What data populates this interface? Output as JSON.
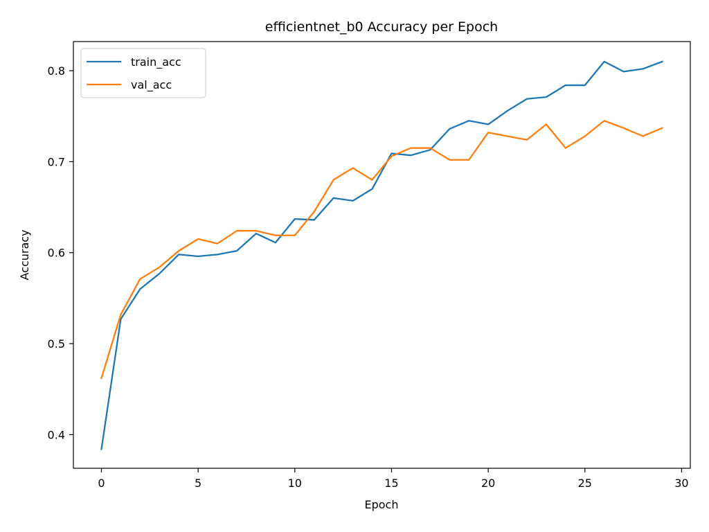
{
  "chart_data": {
    "type": "line",
    "title": "efficientnet_b0 Accuracy per Epoch",
    "xlabel": "Epoch",
    "ylabel": "Accuracy",
    "xlim": [
      -1.45,
      30.45
    ],
    "ylim": [
      0.363,
      0.832
    ],
    "xticks": [
      0,
      5,
      10,
      15,
      20,
      25,
      30
    ],
    "yticks": [
      0.4,
      0.5,
      0.6,
      0.7,
      0.8
    ],
    "grid": false,
    "legend_position": "upper-left",
    "x": [
      0,
      1,
      2,
      3,
      4,
      5,
      6,
      7,
      8,
      9,
      10,
      11,
      12,
      13,
      14,
      15,
      16,
      17,
      18,
      19,
      20,
      21,
      22,
      23,
      24,
      25,
      26,
      27,
      28,
      29
    ],
    "series": [
      {
        "name": "train_acc",
        "color": "#1f77b4",
        "values": [
          0.384,
          0.527,
          0.56,
          0.577,
          0.598,
          0.596,
          0.598,
          0.602,
          0.621,
          0.611,
          0.637,
          0.636,
          0.66,
          0.657,
          0.67,
          0.709,
          0.707,
          0.713,
          0.736,
          0.745,
          0.741,
          0.756,
          0.769,
          0.771,
          0.784,
          0.784,
          0.81,
          0.799,
          0.802,
          0.81
        ]
      },
      {
        "name": "val_acc",
        "color": "#ff7f0e",
        "values": [
          0.462,
          0.532,
          0.571,
          0.584,
          0.602,
          0.615,
          0.61,
          0.624,
          0.624,
          0.619,
          0.619,
          0.645,
          0.68,
          0.693,
          0.68,
          0.706,
          0.715,
          0.715,
          0.702,
          0.702,
          0.732,
          0.728,
          0.724,
          0.741,
          0.715,
          0.728,
          0.745,
          0.737,
          0.728,
          0.737
        ]
      }
    ]
  }
}
